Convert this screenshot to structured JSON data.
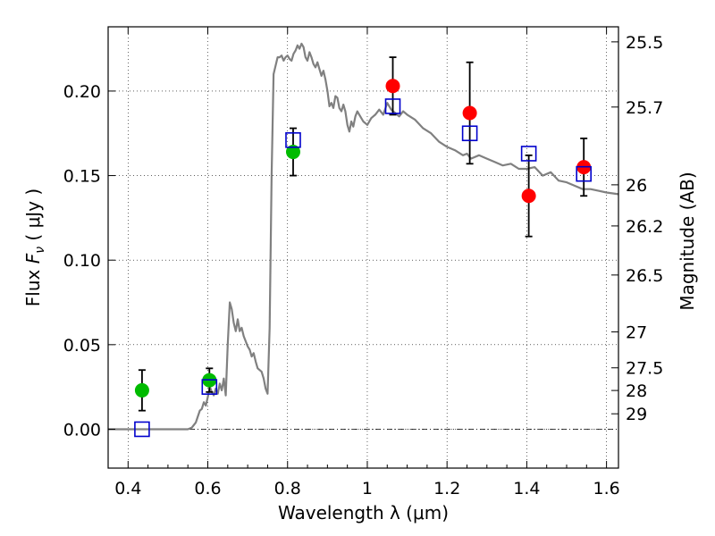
{
  "chart_data": {
    "type": "scatter",
    "title": "",
    "xlabel": "Wavelength  λ (μm)",
    "ylabel": "Flux  F_ν  ( μJy )",
    "ylabel_parts": {
      "prefix": "Flux  ",
      "symbol": "F",
      "subscript": "ν",
      "suffix": "  ( μJy )"
    },
    "ylabel_right": "Magnitude (AB)",
    "xlim": [
      0.35,
      1.63
    ],
    "ylim": [
      -0.023,
      0.238
    ],
    "grid": true,
    "legend": "none",
    "x_ticks": [
      {
        "value": 0.4,
        "label": "0.4"
      },
      {
        "value": 0.6,
        "label": "0.6"
      },
      {
        "value": 0.8,
        "label": "0.8"
      },
      {
        "value": 1.0,
        "label": "1"
      },
      {
        "value": 1.2,
        "label": "1.2"
      },
      {
        "value": 1.4,
        "label": "1.4"
      },
      {
        "value": 1.6,
        "label": "1.6"
      }
    ],
    "y_ticks": [
      {
        "value": 0.0,
        "label": "0.00"
      },
      {
        "value": 0.05,
        "label": "0.05"
      },
      {
        "value": 0.1,
        "label": "0.10"
      },
      {
        "value": 0.15,
        "label": "0.15"
      },
      {
        "value": 0.2,
        "label": "0.20"
      }
    ],
    "right_ticks": [
      {
        "label": "25.5",
        "value": 25.5
      },
      {
        "label": "25.7",
        "value": 25.7
      },
      {
        "label": "26",
        "value": 26.0
      },
      {
        "label": "26.2",
        "value": 26.2
      },
      {
        "label": "26.5",
        "value": 26.5
      },
      {
        "label": "27",
        "value": 27.0
      },
      {
        "label": "27.5",
        "value": 27.5
      },
      {
        "label": "28",
        "value": 28.0
      },
      {
        "label": "29",
        "value": 29.0
      }
    ],
    "zero_line": {
      "y": 0.0,
      "color": "#000000",
      "style": "dash-dot"
    },
    "series": [
      {
        "kind": "line",
        "color": "#808080",
        "x": [
          0.35,
          0.55,
          0.56,
          0.57,
          0.58,
          0.585,
          0.59,
          0.595,
          0.6,
          0.605,
          0.61,
          0.615,
          0.62,
          0.625,
          0.63,
          0.635,
          0.64,
          0.645,
          0.65,
          0.655,
          0.66,
          0.665,
          0.67,
          0.675,
          0.68,
          0.685,
          0.69,
          0.695,
          0.7,
          0.705,
          0.71,
          0.715,
          0.72,
          0.725,
          0.73,
          0.735,
          0.74,
          0.745,
          0.75,
          0.755,
          0.76,
          0.765,
          0.775,
          0.78,
          0.785,
          0.79,
          0.795,
          0.8,
          0.805,
          0.81,
          0.815,
          0.82,
          0.825,
          0.83,
          0.835,
          0.84,
          0.845,
          0.85,
          0.855,
          0.86,
          0.865,
          0.87,
          0.875,
          0.88,
          0.885,
          0.89,
          0.895,
          0.9,
          0.905,
          0.91,
          0.915,
          0.92,
          0.925,
          0.93,
          0.935,
          0.94,
          0.945,
          0.95,
          0.955,
          0.96,
          0.965,
          0.97,
          0.975,
          0.98,
          0.99,
          1.0,
          1.01,
          1.02,
          1.03,
          1.04,
          1.05,
          1.06,
          1.07,
          1.08,
          1.09,
          1.1,
          1.12,
          1.14,
          1.16,
          1.18,
          1.2,
          1.22,
          1.24,
          1.25,
          1.26,
          1.28,
          1.3,
          1.32,
          1.34,
          1.36,
          1.38,
          1.4,
          1.42,
          1.44,
          1.46,
          1.48,
          1.5,
          1.52,
          1.54,
          1.56,
          1.58,
          1.6,
          1.63
        ],
        "y": [
          0.0,
          0.0,
          0.001,
          0.004,
          0.011,
          0.012,
          0.016,
          0.014,
          0.019,
          0.025,
          0.022,
          0.02,
          0.024,
          0.021,
          0.027,
          0.023,
          0.03,
          0.02,
          0.05,
          0.075,
          0.071,
          0.063,
          0.058,
          0.065,
          0.058,
          0.06,
          0.055,
          0.052,
          0.049,
          0.047,
          0.043,
          0.045,
          0.04,
          0.036,
          0.035,
          0.034,
          0.03,
          0.024,
          0.021,
          0.06,
          0.15,
          0.21,
          0.22,
          0.22,
          0.221,
          0.218,
          0.22,
          0.221,
          0.219,
          0.218,
          0.222,
          0.224,
          0.227,
          0.225,
          0.228,
          0.226,
          0.22,
          0.218,
          0.223,
          0.22,
          0.216,
          0.214,
          0.217,
          0.213,
          0.209,
          0.212,
          0.207,
          0.2,
          0.191,
          0.193,
          0.19,
          0.197,
          0.196,
          0.19,
          0.188,
          0.192,
          0.188,
          0.18,
          0.176,
          0.182,
          0.179,
          0.185,
          0.188,
          0.186,
          0.182,
          0.18,
          0.184,
          0.186,
          0.189,
          0.186,
          0.193,
          0.189,
          0.187,
          0.185,
          0.188,
          0.186,
          0.183,
          0.178,
          0.175,
          0.17,
          0.167,
          0.165,
          0.162,
          0.163,
          0.16,
          0.162,
          0.16,
          0.158,
          0.156,
          0.157,
          0.154,
          0.154,
          0.155,
          0.15,
          0.152,
          0.147,
          0.146,
          0.144,
          0.142,
          0.142,
          0.141,
          0.14,
          0.139
        ]
      },
      {
        "kind": "points",
        "marker": "circle",
        "color": "#00bb00",
        "x": [
          0.435,
          0.604,
          0.814
        ],
        "y": [
          0.023,
          0.029,
          0.164
        ],
        "yerr": [
          0.012,
          0.007,
          0.014
        ]
      },
      {
        "kind": "points",
        "marker": "circle",
        "color": "#ff0000",
        "x": [
          1.064,
          1.257,
          1.405,
          1.543
        ],
        "y": [
          0.203,
          0.187,
          0.138,
          0.155
        ],
        "yerr": [
          0.017,
          0.03,
          0.024,
          0.017
        ]
      },
      {
        "kind": "points",
        "marker": "square",
        "color": "#0000cc",
        "x": [
          0.435,
          0.604,
          0.814,
          1.064,
          1.257,
          1.405,
          1.543
        ],
        "y": [
          0.0,
          0.025,
          0.171,
          0.191,
          0.175,
          0.163,
          0.151
        ]
      }
    ]
  }
}
